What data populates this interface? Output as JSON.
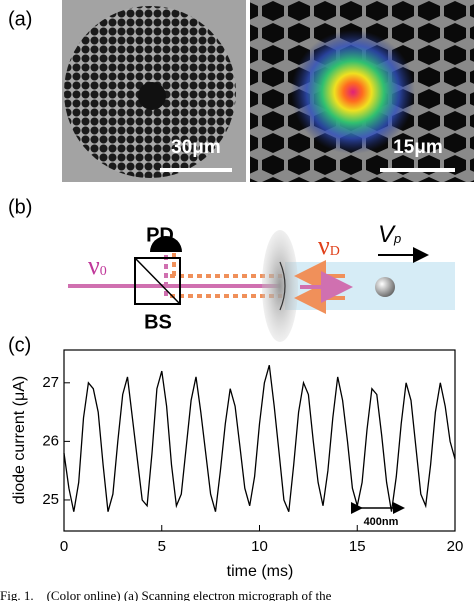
{
  "panels": {
    "a": {
      "label": "(a)",
      "scale_bars": [
        "30μm",
        "15μm"
      ]
    },
    "b": {
      "label": "(b)",
      "detector": "PD",
      "splitter": "BS",
      "incident": {
        "symbol": "ν",
        "subscript": "0"
      },
      "doppler": {
        "symbol": "ν",
        "subscript": "D"
      },
      "velocity": {
        "symbol": "V",
        "subscript": "p"
      }
    },
    "c": {
      "label": "(c)"
    }
  },
  "chart_data": {
    "type": "line",
    "x_label": "time (ms)",
    "y_label": "diode current (μA)",
    "annotation": "400nm",
    "x": [
      0,
      0.25,
      0.5,
      0.75,
      1,
      1.25,
      1.5,
      1.75,
      2,
      2.25,
      2.5,
      2.75,
      3,
      3.25,
      3.5,
      3.75,
      4,
      4.25,
      4.5,
      4.75,
      5,
      5.25,
      5.5,
      5.75,
      6,
      6.25,
      6.5,
      6.75,
      7,
      7.25,
      7.5,
      7.75,
      8,
      8.25,
      8.5,
      8.75,
      9,
      9.25,
      9.5,
      9.75,
      10,
      10.25,
      10.5,
      10.75,
      11,
      11.25,
      11.5,
      11.75,
      12,
      12.25,
      12.5,
      12.75,
      13,
      13.25,
      13.5,
      13.75,
      14,
      14.25,
      14.5,
      14.75,
      15,
      15.25,
      15.5,
      15.75,
      16,
      16.25,
      16.5,
      16.75,
      17,
      17.25,
      17.5,
      17.75,
      18,
      18.25,
      18.5,
      18.75,
      19,
      19.25,
      19.5,
      19.75,
      20
    ],
    "series": [
      {
        "color": "#000000",
        "values": [
          25.8,
          25.2,
          24.8,
          25.3,
          26.4,
          27.0,
          26.9,
          26.5,
          25.6,
          24.8,
          25.1,
          26.0,
          26.8,
          27.1,
          26.4,
          25.7,
          25.0,
          24.9,
          25.8,
          26.9,
          27.2,
          26.6,
          25.6,
          24.9,
          25.1,
          25.9,
          26.7,
          27.1,
          26.5,
          25.8,
          25.1,
          24.8,
          25.5,
          26.3,
          26.9,
          26.6,
          25.9,
          25.2,
          24.9,
          25.4,
          26.3,
          27.0,
          27.3,
          26.6,
          25.8,
          25.0,
          24.8,
          25.6,
          26.5,
          27.0,
          26.8,
          26.0,
          25.3,
          24.9,
          25.5,
          26.4,
          27.1,
          26.7,
          26.0,
          25.2,
          24.9,
          25.3,
          26.2,
          26.9,
          26.8,
          26.1,
          25.3,
          24.8,
          25.4,
          26.3,
          27.0,
          26.7,
          25.9,
          25.1,
          24.9,
          25.6,
          26.5,
          27.0,
          26.6,
          26.0,
          25.7
        ]
      }
    ],
    "xlim": [
      0,
      20
    ],
    "xticks": [
      0,
      5,
      10,
      15,
      20
    ],
    "ylim": [
      24.47,
      27.56
    ],
    "yticks": [
      25,
      26,
      27
    ]
  },
  "caption": "Fig. 1.    (Color online) (a) Scanning electron micrograph of the"
}
